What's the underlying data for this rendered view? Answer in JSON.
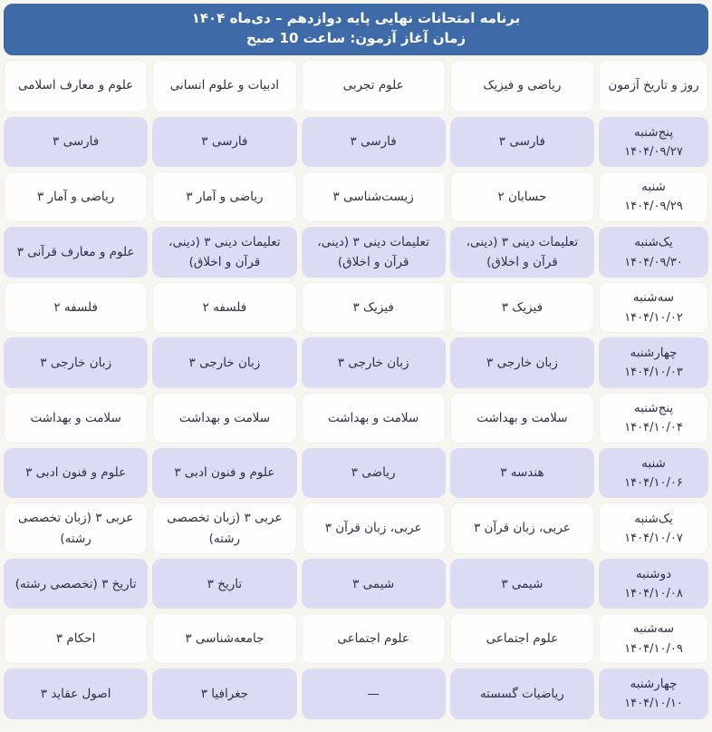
{
  "header": {
    "title_line1": "برنامه امتحانات نهایی پایه دوازدهم – دی‌ماه ۱۴۰۴",
    "title_line2": "زمان آغاز آزمون: ساعت 10 صبح"
  },
  "colors": {
    "banner_bg": "#3e6aa8",
    "banner_text": "#ffffff",
    "row_alt_bg": "#dbdcf3",
    "row_bg": "#fefefe",
    "text": "#2f3043",
    "page_bg": "#f7f5f0"
  },
  "table": {
    "columns": [
      "روز و تاریخ آزمون",
      "ریاضی و فیزیک",
      "علوم تجربی",
      "ادبیات و علوم انسانی",
      "علوم و معارف اسلامی"
    ],
    "rows": [
      {
        "day": "پنج‌شنبه",
        "date": "۱۴۰۴/۰۹/۲۷",
        "cells": [
          "فارسی ۳",
          "فارسی ۳",
          "فارسی ۳",
          "فارسی ۳"
        ]
      },
      {
        "day": "شنبه",
        "date": "۱۴۰۴/۰۹/۲۹",
        "cells": [
          "حسابان ۲",
          "زیست‌شناسی ۳",
          "ریاضی و آمار ۳",
          "ریاضی و آمار ۳"
        ]
      },
      {
        "day": "یک‌شنبه",
        "date": "۱۴۰۴/۰۹/۳۰",
        "cells": [
          "تعلیمات دینی ۳ (دینی، قرآن و اخلاق)",
          "تعلیمات دینی ۳ (دینی، قرآن و اخلاق)",
          "تعلیمات دینی ۳ (دینی، قرآن و اخلاق)",
          "علوم و معارف قرآنی ۳"
        ]
      },
      {
        "day": "سه‌شنبه",
        "date": "۱۴۰۴/۱۰/۰۲",
        "cells": [
          "فیزیک ۳",
          "فیزیک ۳",
          "فلسفه ۲",
          "فلسفه ۲"
        ]
      },
      {
        "day": "چهارشنبه",
        "date": "۱۴۰۴/۱۰/۰۳",
        "cells": [
          "زبان خارجی ۳",
          "زبان خارجی ۳",
          "زبان خارجی ۳",
          "زبان خارجی ۳"
        ]
      },
      {
        "day": "پنج‌شنبه",
        "date": "۱۴۰۴/۱۰/۰۴",
        "cells": [
          "سلامت و بهداشت",
          "سلامت و بهداشت",
          "سلامت و بهداشت",
          "سلامت و بهداشت"
        ]
      },
      {
        "day": "شنبه",
        "date": "۱۴۰۴/۱۰/۰۶",
        "cells": [
          "هندسه ۳",
          "ریاضی ۳",
          "علوم و فنون ادبی ۳",
          "علوم و فنون ادبی ۳"
        ]
      },
      {
        "day": "یک‌شنبه",
        "date": "۱۴۰۴/۱۰/۰۷",
        "cells": [
          "عربی، زبان قرآن ۳",
          "عربی، زبان قرآن ۳",
          "عربی ۳ (زبان تخصصی رشته)",
          "عربی ۳ (زبان تخصصی رشته)"
        ]
      },
      {
        "day": "دوشنبه",
        "date": "۱۴۰۴/۱۰/۰۸",
        "cells": [
          "شیمی ۳",
          "شیمی ۳",
          "تاریخ ۳",
          "تاریخ ۳ (تخصصی رشته)"
        ]
      },
      {
        "day": "سه‌شنبه",
        "date": "۱۴۰۴/۱۰/۰۹",
        "cells": [
          "علوم اجتماعی",
          "علوم اجتماعی",
          "جامعه‌شناسی ۳",
          "احکام ۳"
        ]
      },
      {
        "day": "چهارشنبه",
        "date": "۱۴۰۴/۱۰/۱۰",
        "cells": [
          "ریاضیات گسسته",
          "—",
          "جغرافیا ۳",
          "اصول عقاید ۳"
        ]
      }
    ]
  }
}
